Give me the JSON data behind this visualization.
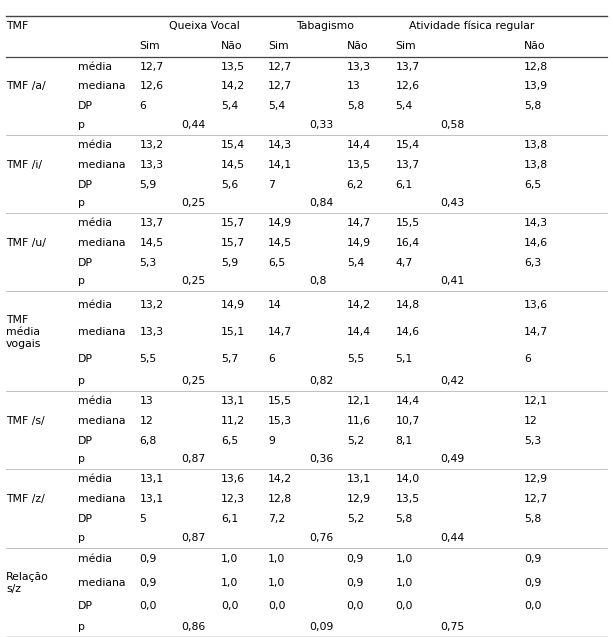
{
  "rows": [
    {
      "group": "TMF /a/",
      "stat": "média",
      "qv_sim": "12,7",
      "qv_nao": "13,5",
      "tab_sim": "12,7",
      "tab_nao": "13,3",
      "af_sim": "13,7",
      "af_nao": "12,8"
    },
    {
      "group": "",
      "stat": "mediana",
      "qv_sim": "12,6",
      "qv_nao": "14,2",
      "tab_sim": "12,7",
      "tab_nao": "13",
      "af_sim": "12,6",
      "af_nao": "13,9"
    },
    {
      "group": "",
      "stat": "DP",
      "qv_sim": "6",
      "qv_nao": "5,4",
      "tab_sim": "5,4",
      "tab_nao": "5,8",
      "af_sim": "5,4",
      "af_nao": "5,8"
    },
    {
      "group": "",
      "stat": "p",
      "qv_p": "0,44",
      "tab_p": "0,33",
      "af_p": "0,58"
    },
    {
      "group": "TMF /i/",
      "stat": "média",
      "qv_sim": "13,2",
      "qv_nao": "15,4",
      "tab_sim": "14,3",
      "tab_nao": "14,4",
      "af_sim": "15,4",
      "af_nao": "13,8"
    },
    {
      "group": "",
      "stat": "mediana",
      "qv_sim": "13,3",
      "qv_nao": "14,5",
      "tab_sim": "14,1",
      "tab_nao": "13,5",
      "af_sim": "13,7",
      "af_nao": "13,8"
    },
    {
      "group": "",
      "stat": "DP",
      "qv_sim": "5,9",
      "qv_nao": "5,6",
      "tab_sim": "7",
      "tab_nao": "6,2",
      "af_sim": "6,1",
      "af_nao": "6,5"
    },
    {
      "group": "",
      "stat": "p",
      "qv_p": "0,25",
      "tab_p": "0,84",
      "af_p": "0,43"
    },
    {
      "group": "TMF /u/",
      "stat": "média",
      "qv_sim": "13,7",
      "qv_nao": "15,7",
      "tab_sim": "14,9",
      "tab_nao": "14,7",
      "af_sim": "15,5",
      "af_nao": "14,3"
    },
    {
      "group": "",
      "stat": "mediana",
      "qv_sim": "14,5",
      "qv_nao": "15,7",
      "tab_sim": "14,5",
      "tab_nao": "14,9",
      "af_sim": "16,4",
      "af_nao": "14,6"
    },
    {
      "group": "",
      "stat": "DP",
      "qv_sim": "5,3",
      "qv_nao": "5,9",
      "tab_sim": "6,5",
      "tab_nao": "5,4",
      "af_sim": "4,7",
      "af_nao": "6,3"
    },
    {
      "group": "",
      "stat": "p",
      "qv_p": "0,25",
      "tab_p": "0,8",
      "af_p": "0,41"
    },
    {
      "group": "TMF\nmédia\nvogais",
      "stat": "média",
      "qv_sim": "13,2",
      "qv_nao": "14,9",
      "tab_sim": "14",
      "tab_nao": "14,2",
      "af_sim": "14,8",
      "af_nao": "13,6"
    },
    {
      "group": "",
      "stat": "mediana",
      "qv_sim": "13,3",
      "qv_nao": "15,1",
      "tab_sim": "14,7",
      "tab_nao": "14,4",
      "af_sim": "14,6",
      "af_nao": "14,7"
    },
    {
      "group": "",
      "stat": "DP",
      "qv_sim": "5,5",
      "qv_nao": "5,7",
      "tab_sim": "6",
      "tab_nao": "5,5",
      "af_sim": "5,1",
      "af_nao": "6"
    },
    {
      "group": "",
      "stat": "p",
      "qv_p": "0,25",
      "tab_p": "0,82",
      "af_p": "0,42"
    },
    {
      "group": "TMF /s/",
      "stat": "média",
      "qv_sim": "13",
      "qv_nao": "13,1",
      "tab_sim": "15,5",
      "tab_nao": "12,1",
      "af_sim": "14,4",
      "af_nao": "12,1"
    },
    {
      "group": "",
      "stat": "mediana",
      "qv_sim": "12",
      "qv_nao": "11,2",
      "tab_sim": "15,3",
      "tab_nao": "11,6",
      "af_sim": "10,7",
      "af_nao": "12"
    },
    {
      "group": "",
      "stat": "DP",
      "qv_sim": "6,8",
      "qv_nao": "6,5",
      "tab_sim": "9",
      "tab_nao": "5,2",
      "af_sim": "8,1",
      "af_nao": "5,3"
    },
    {
      "group": "",
      "stat": "p",
      "qv_p": "0,87",
      "tab_p": "0,36",
      "af_p": "0,49"
    },
    {
      "group": "TMF /z/",
      "stat": "média",
      "qv_sim": "13,1",
      "qv_nao": "13,6",
      "tab_sim": "14,2",
      "tab_nao": "13,1",
      "af_sim": "14,0",
      "af_nao": "12,9"
    },
    {
      "group": "",
      "stat": "mediana",
      "qv_sim": "13,1",
      "qv_nao": "12,3",
      "tab_sim": "12,8",
      "tab_nao": "12,9",
      "af_sim": "13,5",
      "af_nao": "12,7"
    },
    {
      "group": "",
      "stat": "DP",
      "qv_sim": "5",
      "qv_nao": "6,1",
      "tab_sim": "7,2",
      "tab_nao": "5,2",
      "af_sim": "5,8",
      "af_nao": "5,8"
    },
    {
      "group": "",
      "stat": "p",
      "qv_p": "0,87",
      "tab_p": "0,76",
      "af_p": "0,44"
    },
    {
      "group": "Relação\ns/z",
      "stat": "média",
      "qv_sim": "0,9",
      "qv_nao": "1,0",
      "tab_sim": "1,0",
      "tab_nao": "0,9",
      "af_sim": "1,0",
      "af_nao": "0,9"
    },
    {
      "group": "",
      "stat": "mediana",
      "qv_sim": "0,9",
      "qv_nao": "1,0",
      "tab_sim": "1,0",
      "tab_nao": "0,9",
      "af_sim": "1,0",
      "af_nao": "0,9"
    },
    {
      "group": "",
      "stat": "DP",
      "qv_sim": "0,0",
      "qv_nao": "0,0",
      "tab_sim": "0,0",
      "tab_nao": "0,0",
      "af_sim": "0,0",
      "af_nao": "0,0"
    },
    {
      "group": "",
      "stat": "p",
      "qv_p": "0,86",
      "tab_p": "0,09",
      "af_p": "0,75"
    }
  ],
  "col_x": {
    "tmf": 0.0,
    "stat": 0.12,
    "qv_sim": 0.222,
    "qv_p": 0.292,
    "qv_nao": 0.358,
    "tab_sim": 0.436,
    "tab_p": 0.505,
    "tab_nao": 0.567,
    "af_sim": 0.648,
    "af_p": 0.722,
    "af_nao": 0.862
  },
  "fontsize": 7.8,
  "line_color": "#444444",
  "line_color_thin": "#aaaaaa"
}
